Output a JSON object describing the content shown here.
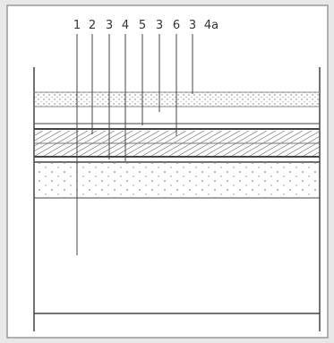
{
  "labels": [
    "1",
    "2",
    "3",
    "4",
    "5",
    "3",
    "6",
    "3",
    "4a"
  ]
}
